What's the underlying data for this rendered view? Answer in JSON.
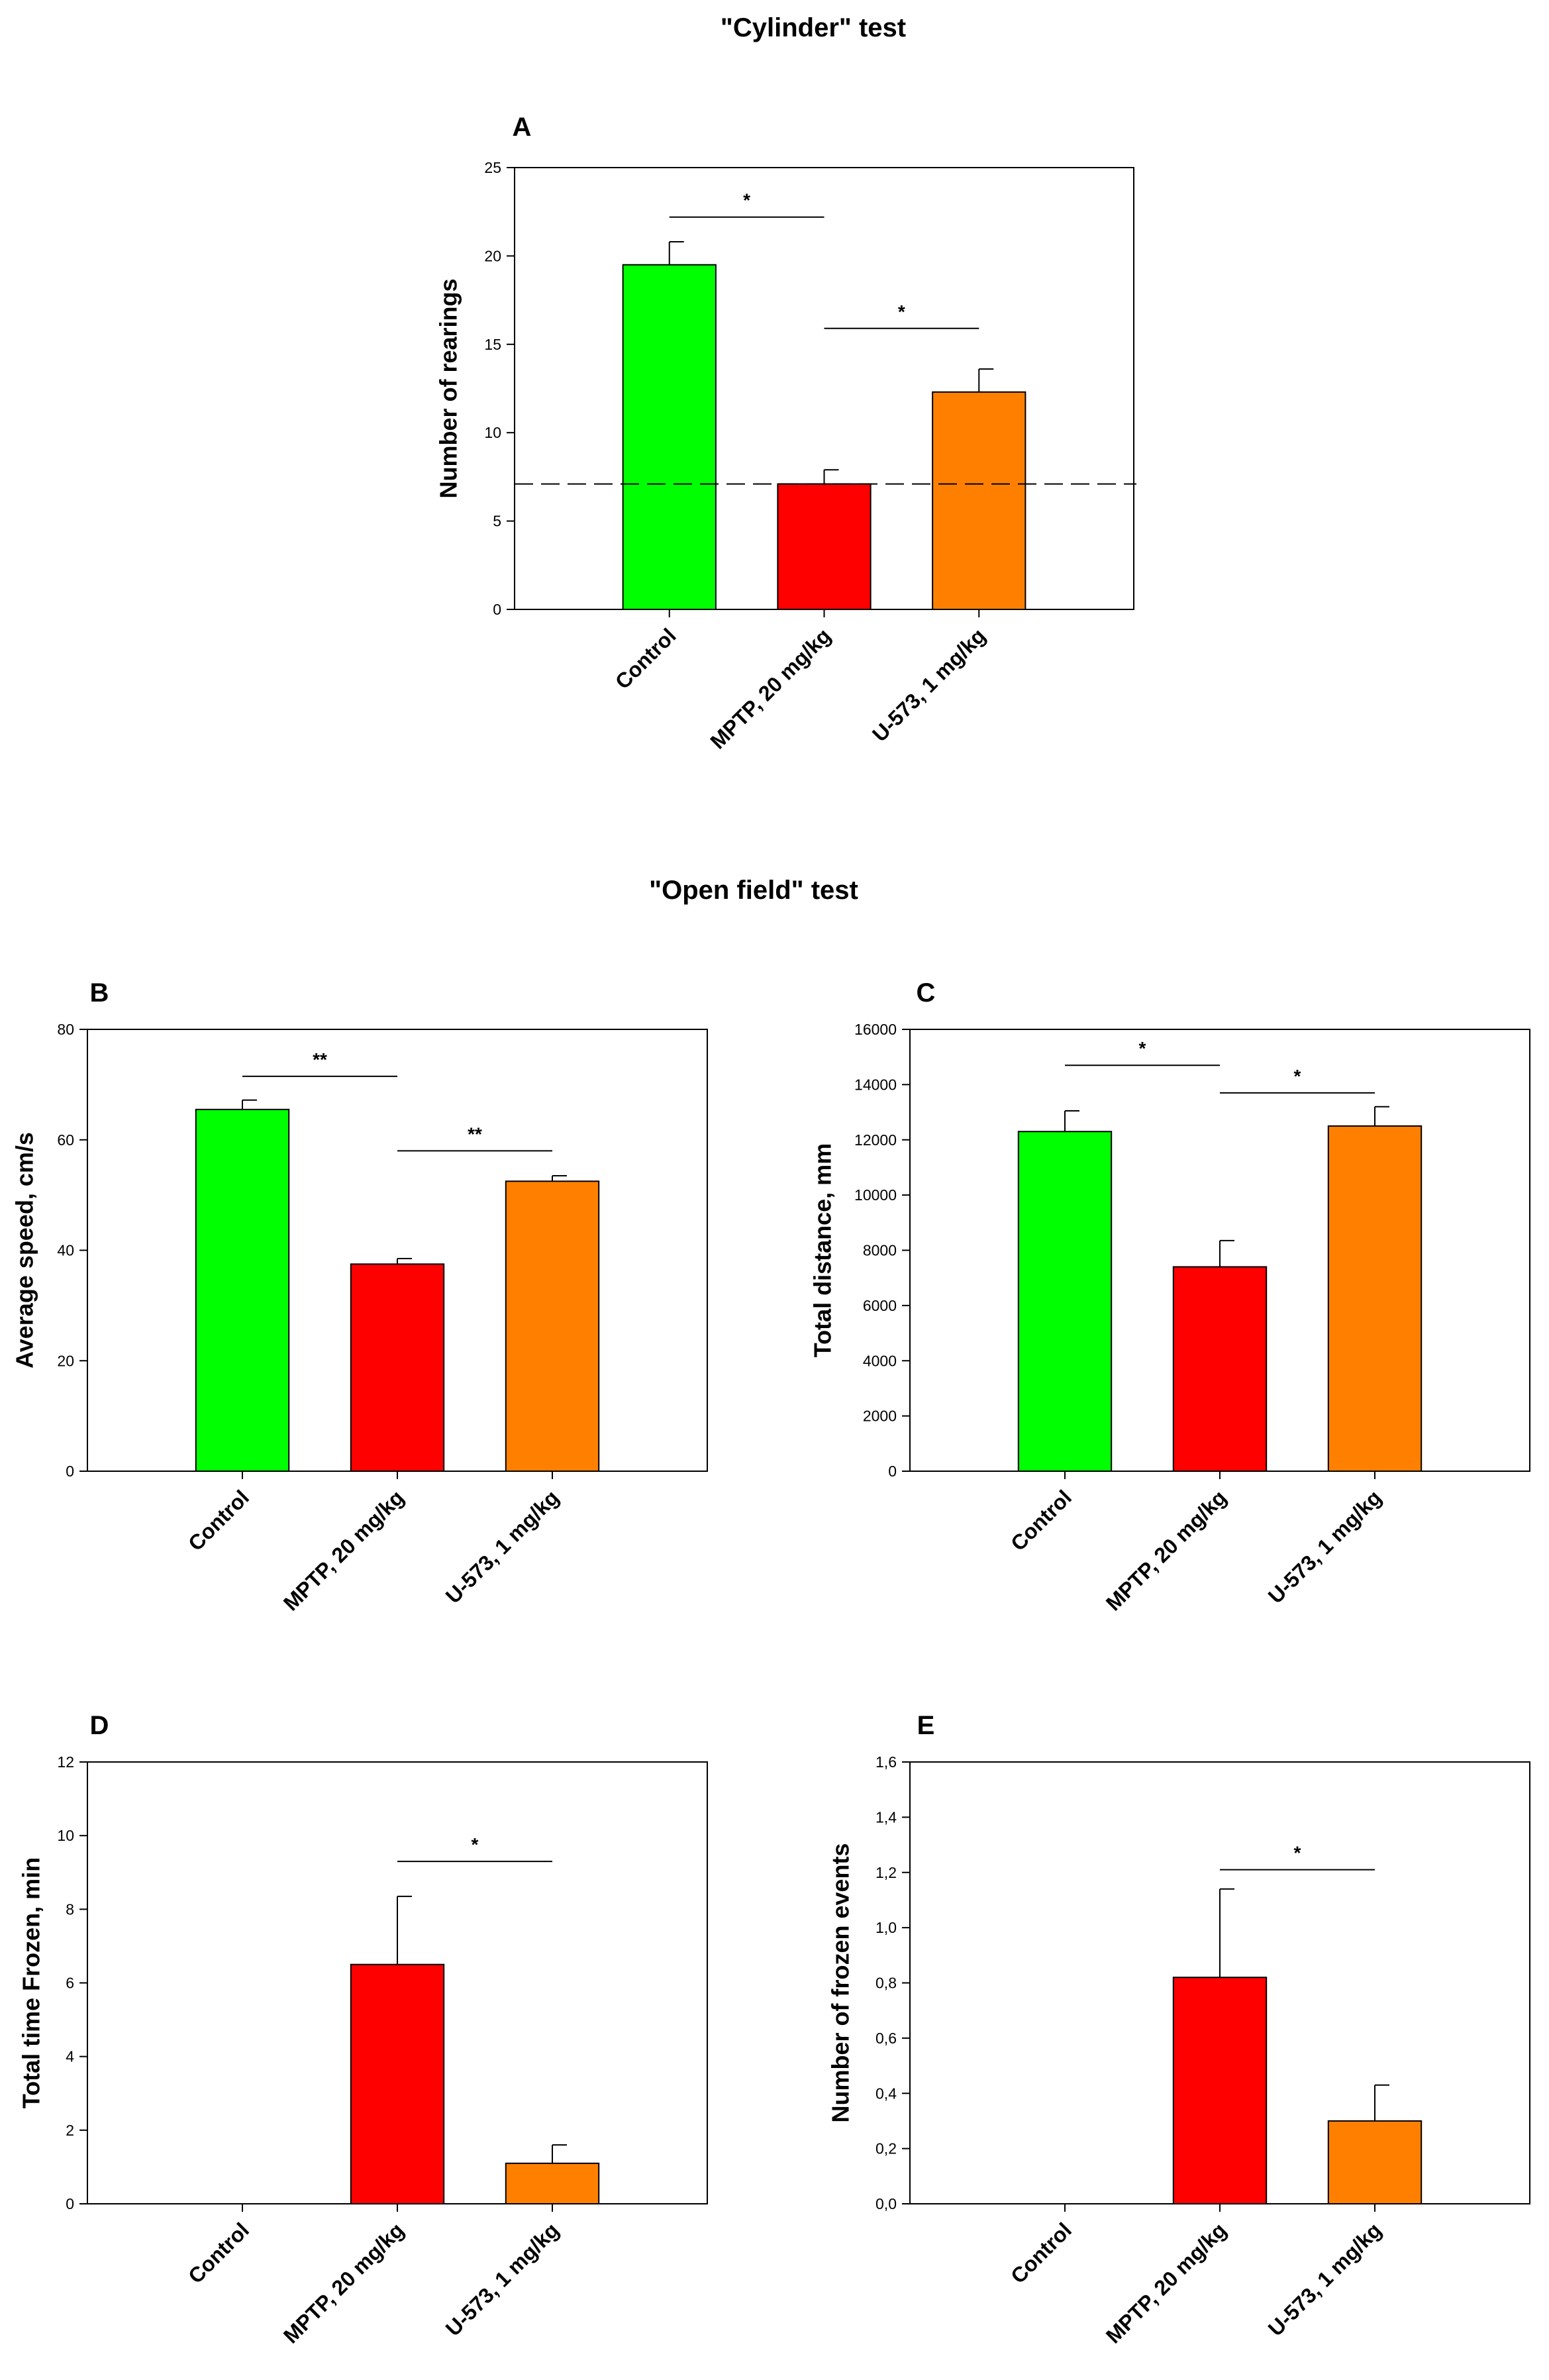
{
  "section_titles": {
    "cylinder": "\"Cylinder\" test",
    "open_field": "\"Open field\" test"
  },
  "colors": {
    "control": "#00ff00",
    "mptp": "#ff0000",
    "u573": "#ff8000",
    "axis": "#000000"
  },
  "chart_data": [
    {
      "id": "A",
      "panel": "A",
      "type": "bar",
      "title": "",
      "xlabel": "",
      "ylabel": "Number of rearings",
      "ylim": [
        0,
        25
      ],
      "yticks": [
        "0",
        "5",
        "10",
        "15",
        "20",
        "25"
      ],
      "categories": [
        "Control",
        "MPTP, 20 mg/kg",
        "U-573, 1 mg/kg"
      ],
      "values": [
        19.5,
        7.1,
        12.3
      ],
      "errors": [
        1.3,
        0.8,
        1.3
      ],
      "reference_line": 7.1,
      "significance": [
        {
          "from": 0,
          "to": 1,
          "label": "*",
          "level": 22.2
        },
        {
          "from": 1,
          "to": 2,
          "label": "*",
          "level": 15.9
        }
      ]
    },
    {
      "id": "B",
      "panel": "B",
      "type": "bar",
      "title": "",
      "xlabel": "",
      "ylabel": "Average speed, cm/s",
      "ylim": [
        0,
        80
      ],
      "yticks": [
        "0",
        "20",
        "40",
        "60",
        "80"
      ],
      "categories": [
        "Control",
        "MPTP, 20 mg/kg",
        "U-573, 1 mg/kg"
      ],
      "values": [
        65.5,
        37.5,
        52.5
      ],
      "errors": [
        1.7,
        1.0,
        1.0
      ],
      "significance": [
        {
          "from": 0,
          "to": 1,
          "label": "**",
          "level": 71.5
        },
        {
          "from": 1,
          "to": 2,
          "label": "**",
          "level": 58.0
        }
      ]
    },
    {
      "id": "C",
      "panel": "C",
      "type": "bar",
      "title": "",
      "xlabel": "",
      "ylabel": "Total distance, mm",
      "ylim": [
        0,
        16000
      ],
      "yticks": [
        "0",
        "2000",
        "4000",
        "6000",
        "8000",
        "10000",
        "12000",
        "14000",
        "16000"
      ],
      "categories": [
        "Control",
        "MPTP, 20 mg/kg",
        "U-573, 1 mg/kg"
      ],
      "values": [
        12300,
        7400,
        12500
      ],
      "errors": [
        750,
        950,
        700
      ],
      "significance": [
        {
          "from": 0,
          "to": 1,
          "label": "*",
          "level": 14700
        },
        {
          "from": 1,
          "to": 2,
          "label": "*",
          "level": 13700
        }
      ]
    },
    {
      "id": "D",
      "panel": "D",
      "type": "bar",
      "title": "",
      "xlabel": "",
      "ylabel": "Total time Frozen, min",
      "ylim": [
        0,
        12
      ],
      "yticks": [
        "0",
        "2",
        "4",
        "6",
        "8",
        "10",
        "12"
      ],
      "categories": [
        "Control",
        "MPTP, 20 mg/kg",
        "U-573, 1 mg/kg"
      ],
      "values": [
        0,
        6.5,
        1.1
      ],
      "errors": [
        0,
        1.85,
        0.5
      ],
      "significance": [
        {
          "from": 1,
          "to": 2,
          "label": "*",
          "level": 9.3
        }
      ]
    },
    {
      "id": "E",
      "panel": "E",
      "type": "bar",
      "title": "",
      "xlabel": "",
      "ylabel": "Number of frozen events",
      "ylim": [
        0,
        1.6
      ],
      "yticks": [
        "0,0",
        "0,2",
        "0,4",
        "0,6",
        "0,8",
        "1,0",
        "1,2",
        "1,4",
        "1,6"
      ],
      "categories": [
        "Control",
        "MPTP, 20 mg/kg",
        "U-573, 1 mg/kg"
      ],
      "values": [
        0,
        0.82,
        0.3
      ],
      "errors": [
        0,
        0.32,
        0.13
      ],
      "significance": [
        {
          "from": 1,
          "to": 2,
          "label": "*",
          "level": 1.21
        }
      ]
    }
  ]
}
